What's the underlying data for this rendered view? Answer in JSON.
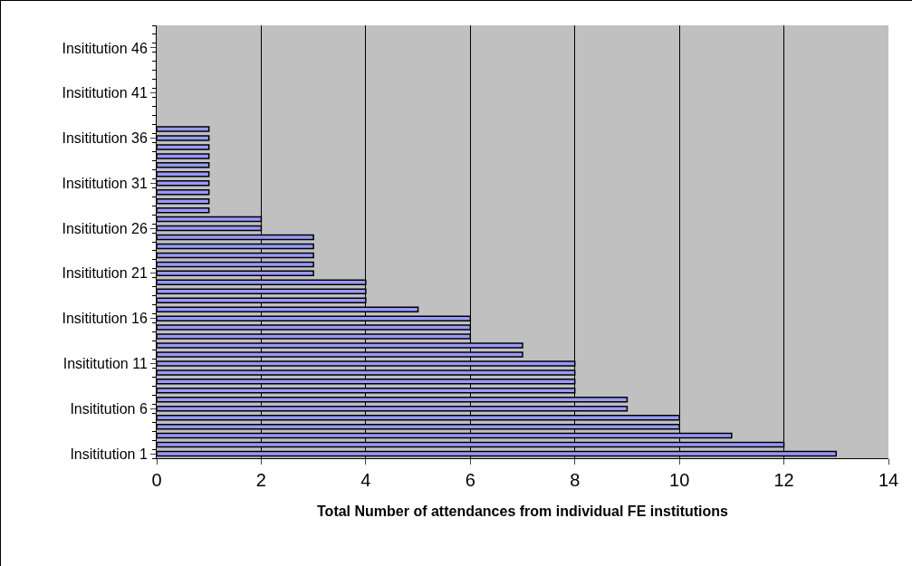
{
  "chart_data": {
    "type": "bar",
    "orientation": "horizontal",
    "xlabel": "Total Number of attendances from individual FE institutions",
    "categories": [
      null,
      null,
      "Insititution 46",
      null,
      null,
      null,
      null,
      "Insititution 41",
      null,
      null,
      null,
      null,
      "Insititution 36",
      null,
      null,
      null,
      null,
      "Insititution 31",
      null,
      null,
      null,
      null,
      "Insititution 26",
      null,
      null,
      null,
      null,
      "Insititution 21",
      null,
      null,
      null,
      null,
      "Insititution 16",
      null,
      null,
      null,
      null,
      "Insititution 11",
      null,
      null,
      null,
      null,
      "Insititution 6",
      null,
      null,
      null,
      null,
      "Insititution 1"
    ],
    "values": [
      null,
      null,
      null,
      null,
      null,
      null,
      null,
      null,
      null,
      null,
      null,
      1,
      1,
      1,
      1,
      1,
      1,
      1,
      1,
      1,
      1,
      2,
      2,
      3,
      3,
      3,
      3,
      3,
      4,
      4,
      4,
      5,
      6,
      6,
      6,
      7,
      7,
      8,
      8,
      8,
      8,
      9,
      9,
      10,
      10,
      11,
      12,
      13
    ],
    "color": "#9999ff",
    "xlim": [
      0,
      14
    ],
    "xticks": [
      0,
      2,
      4,
      6,
      8,
      10,
      12,
      14
    ],
    "grid": "x"
  }
}
